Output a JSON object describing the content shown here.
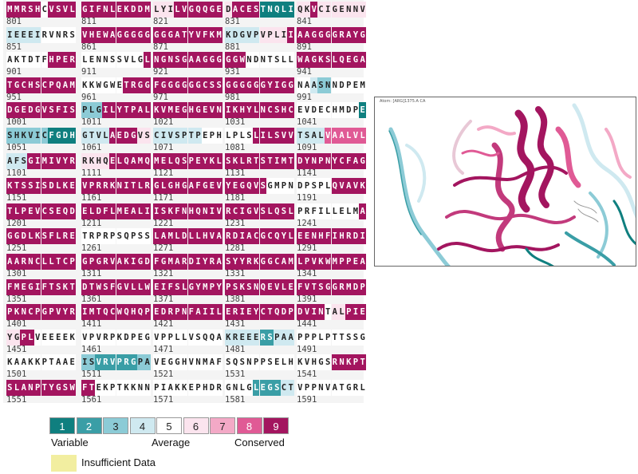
{
  "colors": {
    "1": "#0f7f7f",
    "2": "#3a9ea6",
    "3": "#8ccbd6",
    "4": "#cfe9f0",
    "5": "#ffffff",
    "6": "#fbe4ee",
    "7": "#f3a9c6",
    "8": "#e05a95",
    "9": "#a3155f"
  },
  "rows": [
    {
      "blocks": [
        "MMRSHCVSVL",
        "GIFNLEKDDM",
        "LYILVGQQGE",
        "DACESTNQLI",
        "QKVCIGENNV"
      ],
      "scores": [
        "9999959999",
        "9999999999",
        "6669999999",
        "6999911111",
        "6696666666"
      ],
      "nums": [
        "801",
        "811",
        "821",
        "831",
        "841"
      ]
    },
    {
      "blocks": [
        "IEEEIRVNRS",
        "VHEWAGGGGG",
        "GGGATYVFKM",
        "KDGVPVPLII",
        "AAGGGGRAYG"
      ],
      "scores": [
        "4444455555",
        "9999999999",
        "9999999999",
        "4444466669",
        "9999999999"
      ],
      "nums": [
        "851",
        "861",
        "871",
        "881",
        "891"
      ]
    },
    {
      "blocks": [
        "AKTDTFHPER",
        "LENNSSVLGL",
        "NGNSGAAGGG",
        "GGWNDNTSLL",
        "WAGKSLQEGA"
      ],
      "scores": [
        "5555559999",
        "5555555559",
        "9999999999",
        "9995555555",
        "9999999999"
      ],
      "nums": [
        "901",
        "911",
        "921",
        "931",
        "941"
      ]
    },
    {
      "blocks": [
        "TGCHSCPQAM",
        "KKWGWETRGG",
        "FGGGGGGCSS",
        "GGGGGGYIGG",
        "NAASNNDPEM"
      ],
      "scores": [
        "9999999999",
        "5555559999",
        "9999999999",
        "9999999999",
        "5543355555"
      ],
      "nums": [
        "951",
        "961",
        "971",
        "981",
        "991"
      ]
    },
    {
      "blocks": [
        "DGEDGVSFIS",
        "PLGILYTPAL",
        "KVMEGHGEVN",
        "IKHYLNCSHC",
        "EVDECHMDPE"
      ],
      "scores": [
        "9999999999",
        "3339999999",
        "9999999999",
        "9999999999",
        "5555555551"
      ],
      "nums": [
        "1001",
        "1011",
        "1021",
        "1031",
        "1041"
      ]
    },
    {
      "blocks": [
        "SHKVICFGDH",
        "GTVLAEDGVS",
        "CIVSPTPEPH",
        "LPLSLILSVV",
        "TSALVAALVL"
      ],
      "scores": [
        "3333331111",
        "4444999966",
        "4444444555",
        "5555999999",
        "4444888888"
      ],
      "nums": [
        "1051",
        "1061",
        "1071",
        "1081",
        "1091"
      ]
    },
    {
      "blocks": [
        "AFSGIMIVYR",
        "RKHQELQAMQ",
        "MELQSPEYKL",
        "SKLRTSTIMT",
        "DYNPNYCFAG"
      ],
      "scores": [
        "4449999999",
        "6666999999",
        "9999999999",
        "9999999999",
        "9999999999"
      ],
      "nums": [
        "1101",
        "1111",
        "1121",
        "1131",
        "1141"
      ]
    },
    {
      "blocks": [
        "KTSSISDLKE",
        "VPRRKNITLR",
        "GLGHGAFGEV",
        "YEGQVSGMPN",
        "DPSPLQVAVK"
      ],
      "scores": [
        "9999999999",
        "9999999999",
        "9999999999",
        "9999995555",
        "5555599999"
      ],
      "nums": [
        "1151",
        "1161",
        "1171",
        "1181",
        "1191"
      ]
    },
    {
      "blocks": [
        "TLPEVCSEQD",
        "ELDFLMEALI",
        "ISKFNHQNIV",
        "RCIGVSLQSL",
        "PRFILLELMA"
      ],
      "scores": [
        "9999999999",
        "9999999999",
        "9999999999",
        "9999999999",
        "5555555559"
      ],
      "nums": [
        "1201",
        "1211",
        "1221",
        "1231",
        "1241"
      ]
    },
    {
      "blocks": [
        "GGDLKSFLRE",
        "TRPRPSQPSS",
        "LAMLDLLHVA",
        "RDIACGCQYL",
        "EENHFIHRDI"
      ],
      "scores": [
        "9999999999",
        "5555555555",
        "9999999999",
        "9999999999",
        "9999999999"
      ],
      "nums": [
        "1251",
        "1261",
        "1271",
        "1281",
        "1291"
      ]
    },
    {
      "blocks": [
        "AARNCLLTCP",
        "GPGRVAKIGD",
        "FGMARDIYRA",
        "SYYRKGGCAM",
        "LPVKWMPPEA"
      ],
      "scores": [
        "9999999999",
        "9999999999",
        "9999999999",
        "9999999999",
        "9999999999"
      ],
      "nums": [
        "1301",
        "1311",
        "1321",
        "1331",
        "1341"
      ]
    },
    {
      "blocks": [
        "FMEGIFTSKT",
        "DTWSFGVLLW",
        "EIFSLGYMPY",
        "PSKSNQEVLE",
        "FVTSGGRMDP"
      ],
      "scores": [
        "9999999999",
        "9999999999",
        "9999999999",
        "9999999999",
        "9999999999"
      ],
      "nums": [
        "1351",
        "1361",
        "1371",
        "1381",
        "1391"
      ]
    },
    {
      "blocks": [
        "PKNCPGPVYR",
        "IMTQCWQHQP",
        "EDRPNFAIIL",
        "ERIEYCTQDP",
        "DVINTALPIE"
      ],
      "scores": [
        "9999999999",
        "9999999999",
        "9999999999",
        "9999999999",
        "9999566999"
      ],
      "nums": [
        "1401",
        "1411",
        "1421",
        "1431",
        "1441"
      ]
    },
    {
      "blocks": [
        "YGPLVEEEEK",
        "VPVRPKDPEG",
        "VPPLLVSQQA",
        "KREEERSPAA",
        "PPPLPTTSSG"
      ],
      "scores": [
        "6699555555",
        "5555555555",
        "5555555555",
        "4444422444",
        "5555555555"
      ],
      "nums": [
        "1451",
        "1461",
        "1471",
        "1481",
        "1491"
      ]
    },
    {
      "blocks": [
        "KAAKKPTAAE",
        "ISVRVPRGPA",
        "VEGGHVNMAF",
        "SQSNPPSELH",
        "KVHGSRNKPT"
      ],
      "scores": [
        "5555555555",
        "3322222233",
        "5555555555",
        "5555555555",
        "5555599999"
      ],
      "nums": [
        "1501",
        "1511",
        "1521",
        "1531",
        "1541"
      ]
    },
    {
      "blocks": [
        "SLANPTYGSW",
        "FTEKPTKKNN",
        "PIAKKEPHDR",
        "GNLGLEGSCT",
        "VPPNVATGRL"
      ],
      "scores": [
        "9999999999",
        "9955555555",
        "5555555555",
        "5555222244",
        "5555555555"
      ],
      "nums": [
        "1551",
        "1561",
        "1571",
        "1581",
        "1591"
      ]
    }
  ],
  "legend": {
    "levels": [
      "1",
      "2",
      "3",
      "4",
      "5",
      "6",
      "7",
      "8",
      "9"
    ],
    "variable": "Variable",
    "average": "Average",
    "conserved": "Conserved",
    "insufficient": "Insufficient Data"
  },
  "viewer": {
    "label": "Atom: [ARG]1375.A CA"
  }
}
